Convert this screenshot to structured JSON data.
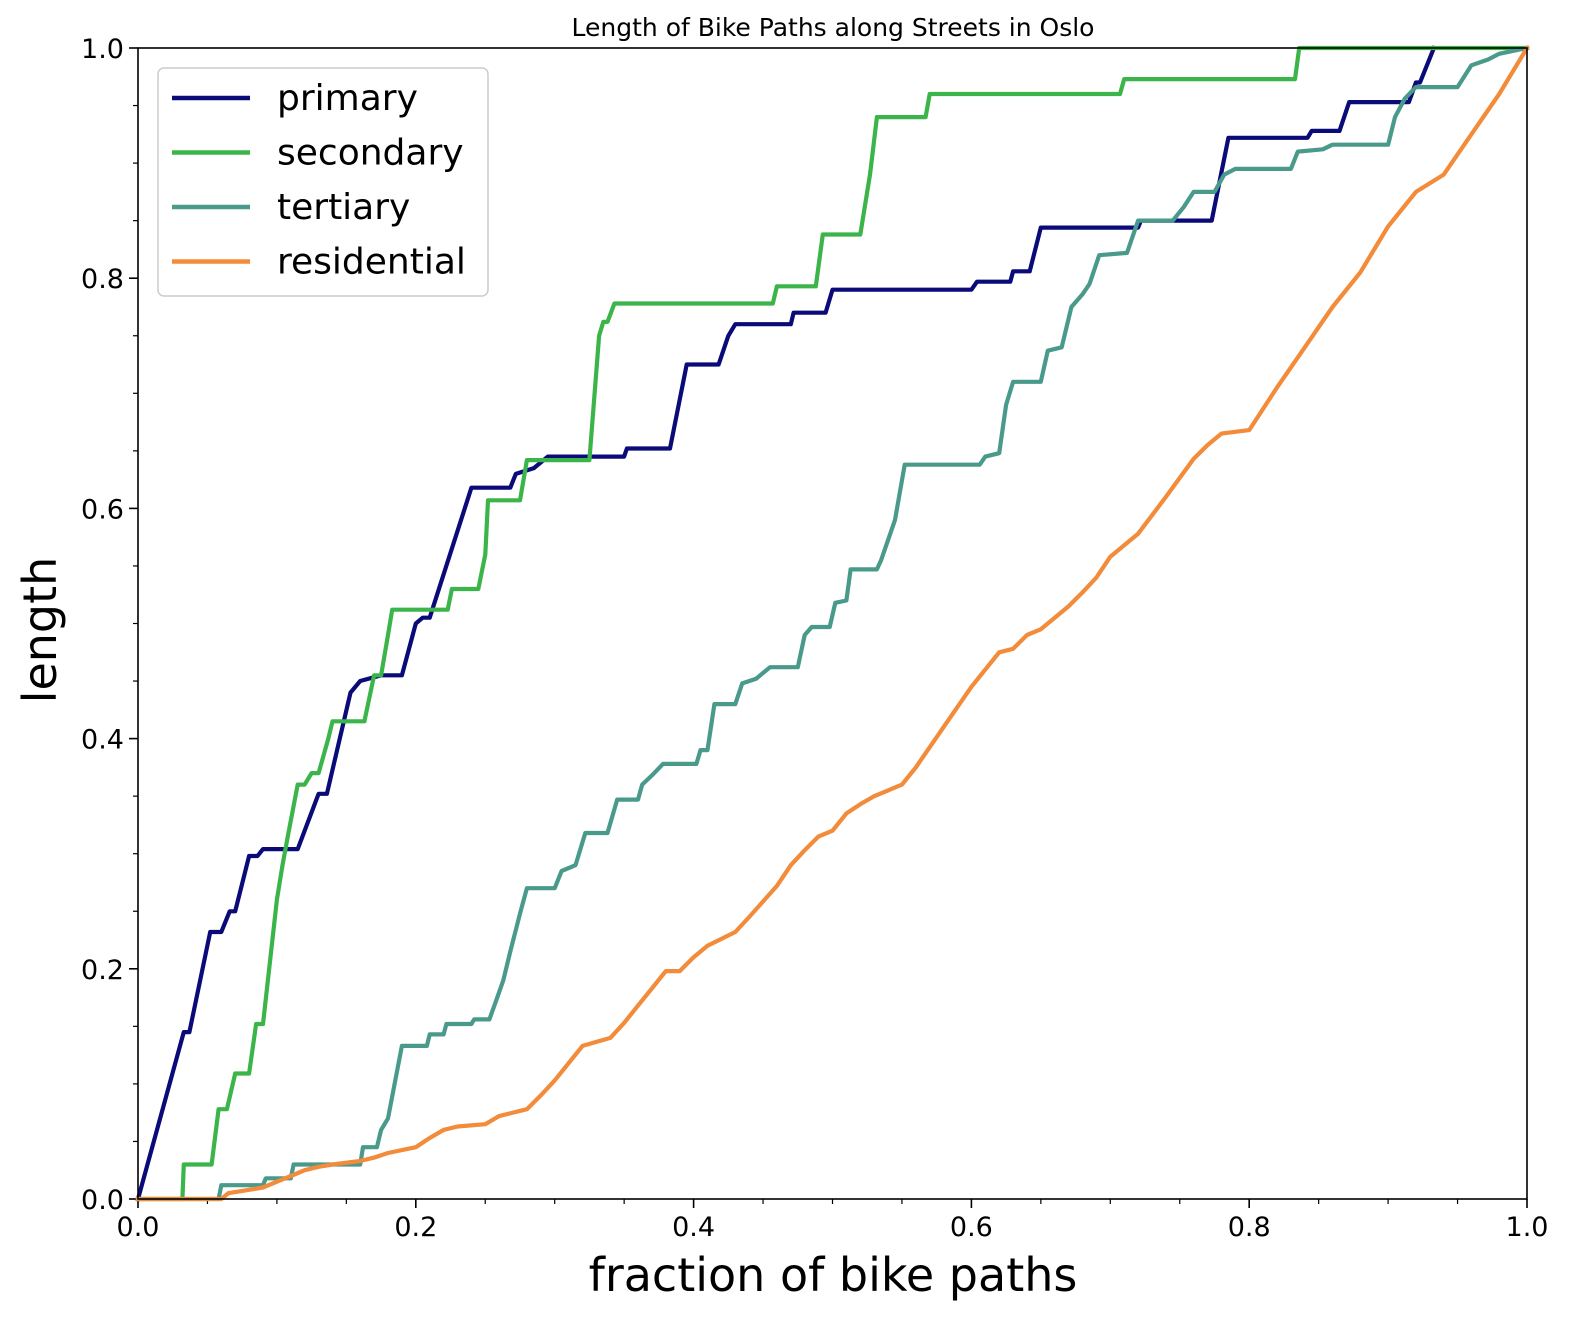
{
  "chart_data": {
    "type": "line",
    "title": "Length of Bike Paths along Streets in Oslo",
    "xlabel": "fraction of bike paths",
    "ylabel": "length",
    "xlim": [
      0.0,
      1.0
    ],
    "ylim": [
      0.0,
      1.0
    ],
    "xticks": [
      "0.0",
      "0.2",
      "0.4",
      "0.6",
      "0.8",
      "1.0"
    ],
    "yticks": [
      "0.0",
      "0.2",
      "0.4",
      "0.6",
      "0.8",
      "1.0"
    ],
    "grid": false,
    "legend_position": "top-left",
    "series": [
      {
        "name": "primary",
        "color": "#0a0a78",
        "points": [
          [
            0.0,
            0.0
          ],
          [
            0.033,
            0.145
          ],
          [
            0.037,
            0.145
          ],
          [
            0.052,
            0.232
          ],
          [
            0.06,
            0.232
          ],
          [
            0.066,
            0.25
          ],
          [
            0.07,
            0.25
          ],
          [
            0.08,
            0.298
          ],
          [
            0.086,
            0.298
          ],
          [
            0.09,
            0.304
          ],
          [
            0.115,
            0.304
          ],
          [
            0.13,
            0.352
          ],
          [
            0.136,
            0.352
          ],
          [
            0.153,
            0.44
          ],
          [
            0.16,
            0.45
          ],
          [
            0.175,
            0.455
          ],
          [
            0.19,
            0.455
          ],
          [
            0.2,
            0.5
          ],
          [
            0.205,
            0.505
          ],
          [
            0.21,
            0.505
          ],
          [
            0.24,
            0.618
          ],
          [
            0.268,
            0.618
          ],
          [
            0.272,
            0.63
          ],
          [
            0.285,
            0.635
          ],
          [
            0.295,
            0.645
          ],
          [
            0.35,
            0.645
          ],
          [
            0.352,
            0.652
          ],
          [
            0.383,
            0.652
          ],
          [
            0.395,
            0.725
          ],
          [
            0.418,
            0.725
          ],
          [
            0.425,
            0.75
          ],
          [
            0.43,
            0.76
          ],
          [
            0.47,
            0.76
          ],
          [
            0.472,
            0.77
          ],
          [
            0.495,
            0.77
          ],
          [
            0.5,
            0.79
          ],
          [
            0.6,
            0.79
          ],
          [
            0.604,
            0.797
          ],
          [
            0.628,
            0.797
          ],
          [
            0.63,
            0.806
          ],
          [
            0.642,
            0.806
          ],
          [
            0.65,
            0.844
          ],
          [
            0.72,
            0.844
          ],
          [
            0.722,
            0.85
          ],
          [
            0.773,
            0.85
          ],
          [
            0.785,
            0.922
          ],
          [
            0.842,
            0.922
          ],
          [
            0.845,
            0.928
          ],
          [
            0.865,
            0.928
          ],
          [
            0.872,
            0.953
          ],
          [
            0.915,
            0.953
          ],
          [
            0.92,
            0.97
          ],
          [
            0.923,
            0.97
          ],
          [
            0.933,
            1.0
          ]
        ]
      },
      {
        "name": "secondary",
        "color": "#3bb54a",
        "points": [
          [
            0.0,
            0.0
          ],
          [
            0.032,
            0.0
          ],
          [
            0.033,
            0.03
          ],
          [
            0.053,
            0.03
          ],
          [
            0.058,
            0.078
          ],
          [
            0.064,
            0.078
          ],
          [
            0.07,
            0.109
          ],
          [
            0.08,
            0.109
          ],
          [
            0.085,
            0.152
          ],
          [
            0.09,
            0.152
          ],
          [
            0.1,
            0.26
          ],
          [
            0.104,
            0.29
          ],
          [
            0.108,
            0.316
          ],
          [
            0.115,
            0.36
          ],
          [
            0.12,
            0.36
          ],
          [
            0.125,
            0.37
          ],
          [
            0.13,
            0.37
          ],
          [
            0.137,
            0.4
          ],
          [
            0.14,
            0.415
          ],
          [
            0.163,
            0.415
          ],
          [
            0.17,
            0.455
          ],
          [
            0.175,
            0.455
          ],
          [
            0.18,
            0.49
          ],
          [
            0.183,
            0.512
          ],
          [
            0.223,
            0.512
          ],
          [
            0.226,
            0.53
          ],
          [
            0.245,
            0.53
          ],
          [
            0.25,
            0.56
          ],
          [
            0.252,
            0.607
          ],
          [
            0.275,
            0.607
          ],
          [
            0.28,
            0.642
          ],
          [
            0.325,
            0.642
          ],
          [
            0.332,
            0.75
          ],
          [
            0.335,
            0.762
          ],
          [
            0.338,
            0.762
          ],
          [
            0.343,
            0.778
          ],
          [
            0.457,
            0.778
          ],
          [
            0.46,
            0.793
          ],
          [
            0.488,
            0.793
          ],
          [
            0.493,
            0.838
          ],
          [
            0.52,
            0.838
          ],
          [
            0.527,
            0.89
          ],
          [
            0.532,
            0.94
          ],
          [
            0.567,
            0.94
          ],
          [
            0.57,
            0.96
          ],
          [
            0.707,
            0.96
          ],
          [
            0.71,
            0.973
          ],
          [
            0.833,
            0.973
          ],
          [
            0.836,
            1.0
          ],
          [
            1.0,
            1.0
          ]
        ]
      },
      {
        "name": "tertiary",
        "color": "#4a9a8c",
        "points": [
          [
            0.0,
            0.0
          ],
          [
            0.058,
            0.0
          ],
          [
            0.06,
            0.012
          ],
          [
            0.09,
            0.012
          ],
          [
            0.092,
            0.018
          ],
          [
            0.11,
            0.018
          ],
          [
            0.112,
            0.03
          ],
          [
            0.16,
            0.03
          ],
          [
            0.162,
            0.045
          ],
          [
            0.172,
            0.045
          ],
          [
            0.175,
            0.06
          ],
          [
            0.18,
            0.07
          ],
          [
            0.19,
            0.133
          ],
          [
            0.208,
            0.133
          ],
          [
            0.21,
            0.143
          ],
          [
            0.22,
            0.143
          ],
          [
            0.222,
            0.152
          ],
          [
            0.24,
            0.152
          ],
          [
            0.242,
            0.156
          ],
          [
            0.253,
            0.156
          ],
          [
            0.258,
            0.173
          ],
          [
            0.263,
            0.19
          ],
          [
            0.268,
            0.215
          ],
          [
            0.275,
            0.248
          ],
          [
            0.28,
            0.27
          ],
          [
            0.3,
            0.27
          ],
          [
            0.305,
            0.285
          ],
          [
            0.315,
            0.29
          ],
          [
            0.322,
            0.318
          ],
          [
            0.338,
            0.318
          ],
          [
            0.345,
            0.347
          ],
          [
            0.36,
            0.347
          ],
          [
            0.363,
            0.36
          ],
          [
            0.37,
            0.368
          ],
          [
            0.378,
            0.378
          ],
          [
            0.402,
            0.378
          ],
          [
            0.405,
            0.39
          ],
          [
            0.41,
            0.39
          ],
          [
            0.415,
            0.43
          ],
          [
            0.43,
            0.43
          ],
          [
            0.435,
            0.448
          ],
          [
            0.445,
            0.452
          ],
          [
            0.455,
            0.462
          ],
          [
            0.475,
            0.462
          ],
          [
            0.48,
            0.49
          ],
          [
            0.485,
            0.497
          ],
          [
            0.498,
            0.497
          ],
          [
            0.502,
            0.518
          ],
          [
            0.51,
            0.52
          ],
          [
            0.513,
            0.547
          ],
          [
            0.532,
            0.547
          ],
          [
            0.535,
            0.555
          ],
          [
            0.545,
            0.59
          ],
          [
            0.552,
            0.638
          ],
          [
            0.606,
            0.638
          ],
          [
            0.61,
            0.645
          ],
          [
            0.62,
            0.648
          ],
          [
            0.625,
            0.69
          ],
          [
            0.63,
            0.71
          ],
          [
            0.65,
            0.71
          ],
          [
            0.655,
            0.737
          ],
          [
            0.665,
            0.74
          ],
          [
            0.672,
            0.775
          ],
          [
            0.68,
            0.786
          ],
          [
            0.685,
            0.795
          ],
          [
            0.692,
            0.82
          ],
          [
            0.712,
            0.822
          ],
          [
            0.72,
            0.85
          ],
          [
            0.745,
            0.85
          ],
          [
            0.753,
            0.862
          ],
          [
            0.76,
            0.875
          ],
          [
            0.775,
            0.875
          ],
          [
            0.782,
            0.89
          ],
          [
            0.79,
            0.895
          ],
          [
            0.83,
            0.895
          ],
          [
            0.835,
            0.91
          ],
          [
            0.853,
            0.912
          ],
          [
            0.86,
            0.916
          ],
          [
            0.9,
            0.916
          ],
          [
            0.905,
            0.94
          ],
          [
            0.912,
            0.956
          ],
          [
            0.92,
            0.966
          ],
          [
            0.95,
            0.966
          ],
          [
            0.96,
            0.985
          ],
          [
            0.972,
            0.99
          ],
          [
            0.98,
            0.995
          ],
          [
            1.0,
            1.0
          ]
        ]
      },
      {
        "name": "residential",
        "color": "#f28b3a",
        "points": [
          [
            0.0,
            0.0
          ],
          [
            0.06,
            0.0
          ],
          [
            0.065,
            0.005
          ],
          [
            0.08,
            0.008
          ],
          [
            0.09,
            0.01
          ],
          [
            0.1,
            0.015
          ],
          [
            0.11,
            0.02
          ],
          [
            0.12,
            0.025
          ],
          [
            0.13,
            0.028
          ],
          [
            0.14,
            0.03
          ],
          [
            0.16,
            0.033
          ],
          [
            0.17,
            0.036
          ],
          [
            0.18,
            0.04
          ],
          [
            0.2,
            0.045
          ],
          [
            0.21,
            0.053
          ],
          [
            0.22,
            0.06
          ],
          [
            0.23,
            0.063
          ],
          [
            0.25,
            0.065
          ],
          [
            0.26,
            0.072
          ],
          [
            0.28,
            0.078
          ],
          [
            0.29,
            0.09
          ],
          [
            0.3,
            0.103
          ],
          [
            0.31,
            0.118
          ],
          [
            0.32,
            0.133
          ],
          [
            0.34,
            0.14
          ],
          [
            0.35,
            0.153
          ],
          [
            0.36,
            0.168
          ],
          [
            0.37,
            0.183
          ],
          [
            0.38,
            0.198
          ],
          [
            0.39,
            0.198
          ],
          [
            0.4,
            0.21
          ],
          [
            0.41,
            0.22
          ],
          [
            0.42,
            0.226
          ],
          [
            0.43,
            0.232
          ],
          [
            0.44,
            0.245
          ],
          [
            0.46,
            0.272
          ],
          [
            0.47,
            0.29
          ],
          [
            0.48,
            0.303
          ],
          [
            0.49,
            0.315
          ],
          [
            0.5,
            0.32
          ],
          [
            0.51,
            0.335
          ],
          [
            0.52,
            0.343
          ],
          [
            0.53,
            0.35
          ],
          [
            0.54,
            0.355
          ],
          [
            0.55,
            0.36
          ],
          [
            0.56,
            0.375
          ],
          [
            0.58,
            0.41
          ],
          [
            0.6,
            0.445
          ],
          [
            0.62,
            0.475
          ],
          [
            0.63,
            0.478
          ],
          [
            0.64,
            0.49
          ],
          [
            0.65,
            0.495
          ],
          [
            0.67,
            0.515
          ],
          [
            0.68,
            0.527
          ],
          [
            0.69,
            0.54
          ],
          [
            0.7,
            0.558
          ],
          [
            0.72,
            0.578
          ],
          [
            0.74,
            0.61
          ],
          [
            0.76,
            0.643
          ],
          [
            0.77,
            0.655
          ],
          [
            0.78,
            0.665
          ],
          [
            0.8,
            0.668
          ],
          [
            0.82,
            0.705
          ],
          [
            0.84,
            0.74
          ],
          [
            0.86,
            0.775
          ],
          [
            0.88,
            0.805
          ],
          [
            0.9,
            0.845
          ],
          [
            0.92,
            0.875
          ],
          [
            0.94,
            0.89
          ],
          [
            0.96,
            0.925
          ],
          [
            0.98,
            0.96
          ],
          [
            1.0,
            1.0
          ]
        ]
      }
    ]
  }
}
